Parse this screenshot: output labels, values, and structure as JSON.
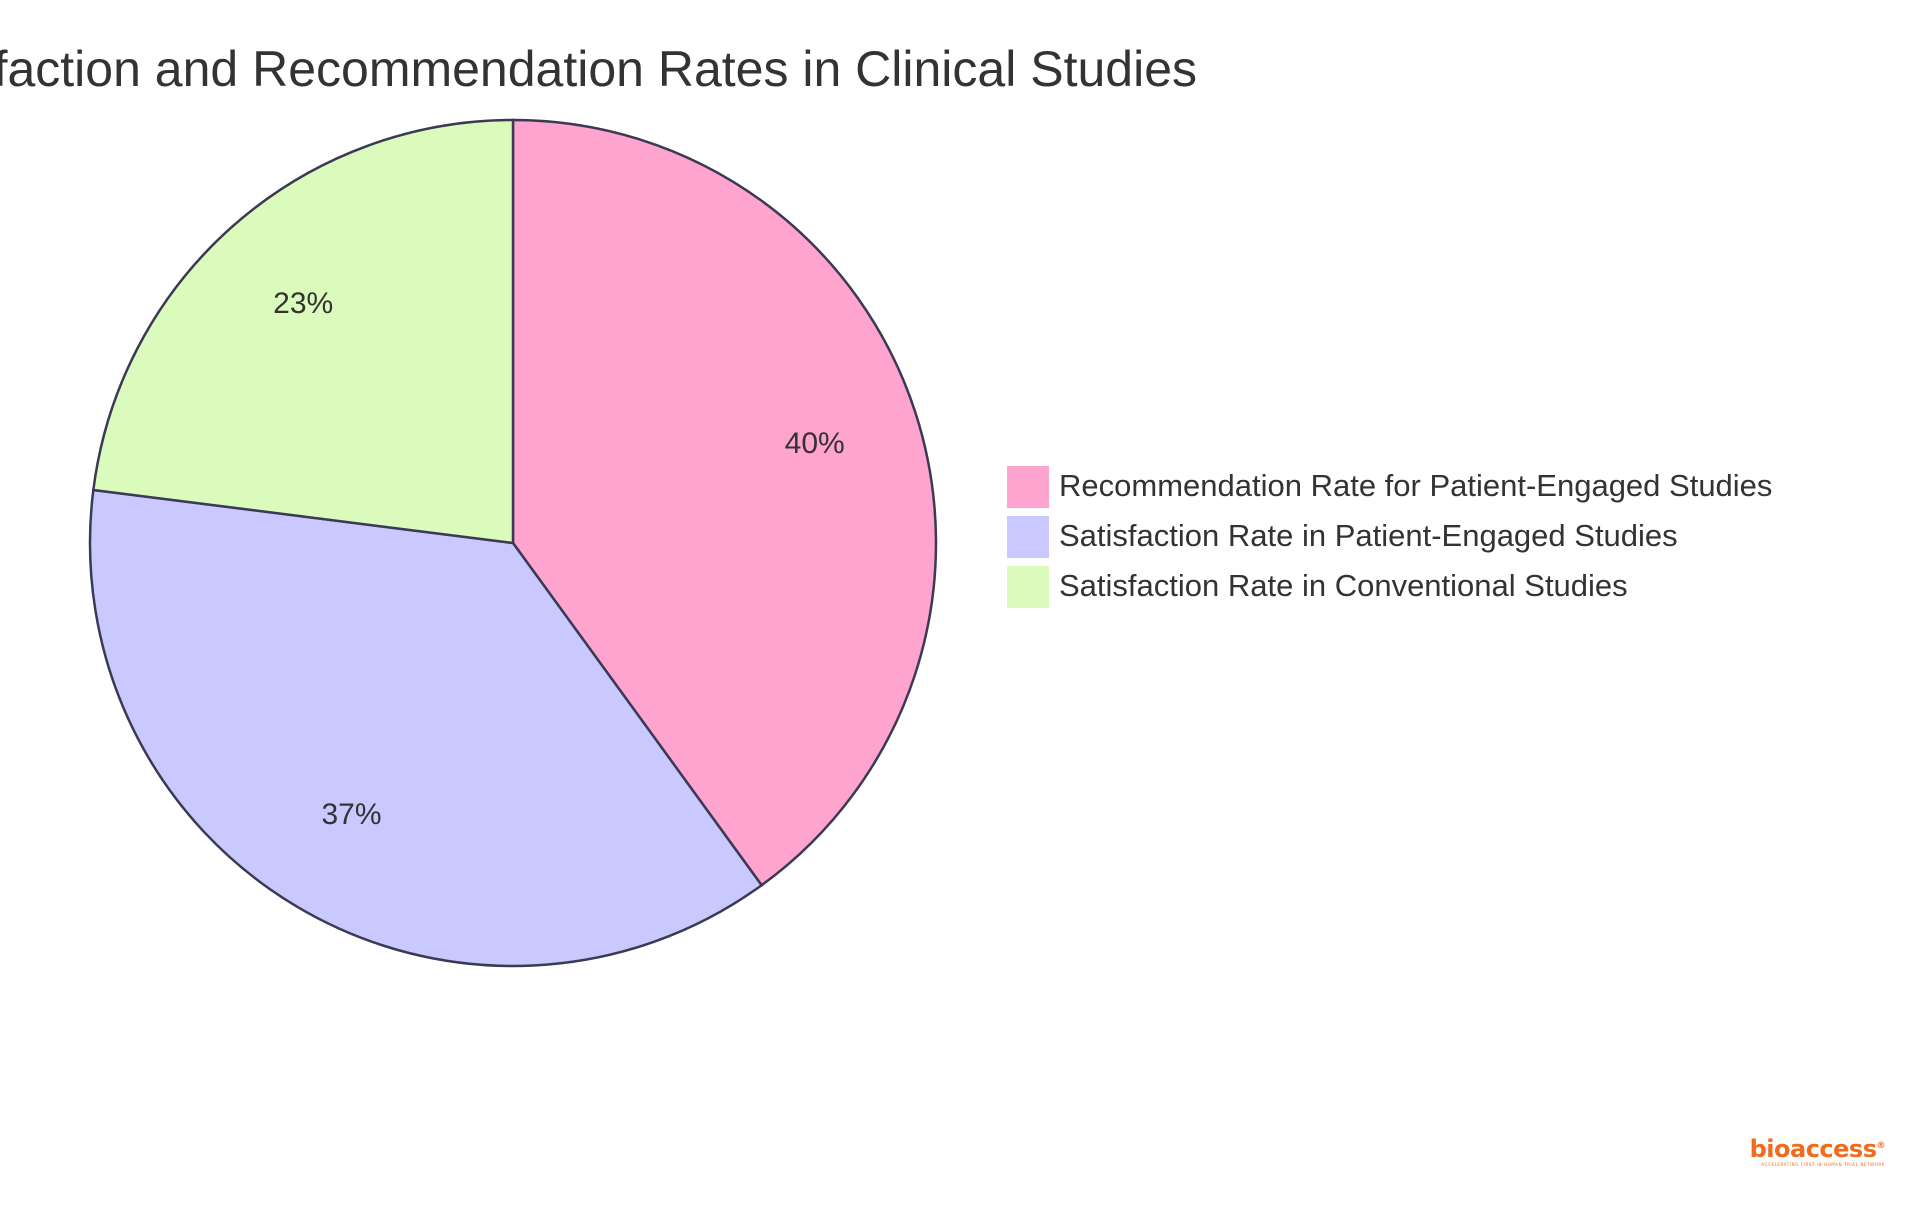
{
  "chart_data": {
    "type": "pie",
    "title": "Satisfaction and Recommendation Rates in Clinical Studies",
    "slices": [
      {
        "label": "Recommendation Rate for Patient-Engaged Studies",
        "value": 40,
        "display": "40%",
        "color": "#ffa3cf"
      },
      {
        "label": "Satisfaction Rate in Patient-Engaged Studies",
        "value": 37,
        "display": "37%",
        "color": "#c9c9ff"
      },
      {
        "label": "Satisfaction Rate in Conventional Studies",
        "value": 23,
        "display": "23%",
        "color": "#dafbbb"
      }
    ],
    "legend_position": "right",
    "stroke_color": "#3a3a55"
  },
  "branding": {
    "logo_text": "bioaccess",
    "logo_mark": "®",
    "tagline": "ACCELERATING FIRST-IN-HUMAN TRIAL NETWORK",
    "logo_color": "#f26a1b"
  }
}
